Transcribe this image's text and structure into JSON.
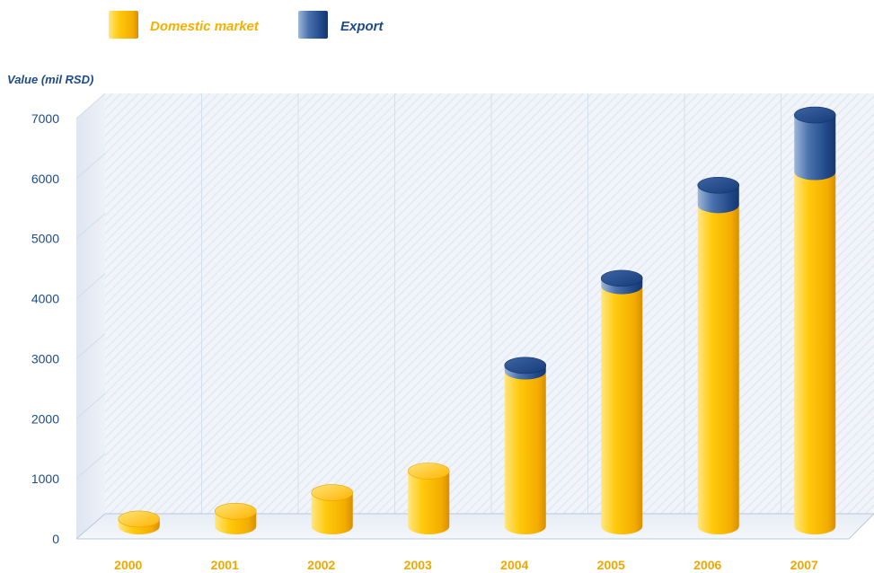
{
  "chart_data": {
    "type": "bar",
    "categories": [
      "2000",
      "2001",
      "2002",
      "2003",
      "2004",
      "2005",
      "2006",
      "2007"
    ],
    "series": [
      {
        "name": "Domestic market",
        "values": [
          120,
          250,
          560,
          920,
          2580,
          4000,
          5350,
          5900
        ]
      },
      {
        "name": "Export",
        "values": [
          0,
          0,
          0,
          0,
          100,
          130,
          330,
          950
        ]
      }
    ],
    "stacked": true,
    "ylabel": "Value (mil RSD)",
    "xlabel": "",
    "ylim": [
      0,
      7000
    ],
    "yticks": [
      0,
      1000,
      2000,
      3000,
      4000,
      5000,
      6000,
      7000
    ],
    "grid": true,
    "legend": "top-left",
    "colors": {
      "Domestic market": "#ffc40a",
      "Export": "#2b5696",
      "axis_text": "#1c4a8a",
      "year_text": "#f0a800"
    }
  }
}
